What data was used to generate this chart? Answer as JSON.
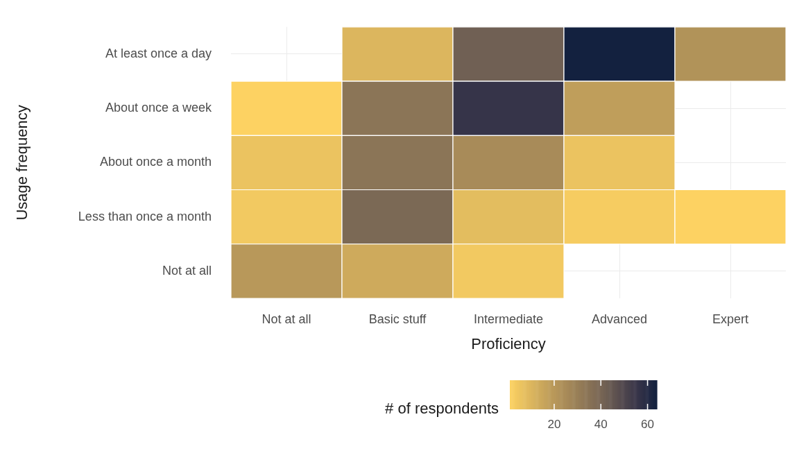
{
  "chart_data": {
    "type": "heatmap",
    "xlabel": "Proficiency",
    "ylabel": "Usage frequency",
    "legend_title": "# of respondents",
    "categories": [
      "Not at all",
      "Basic stuff",
      "Intermediate",
      "Advanced",
      "Expert"
    ],
    "y_categories": [
      "At least once a day",
      "About once a week",
      "About once a month",
      "Less than once a month",
      "Not at all"
    ],
    "cells": [
      [
        null,
        10,
        42,
        64,
        22
      ],
      [
        1,
        34,
        56,
        18,
        null
      ],
      [
        6,
        34,
        25,
        6,
        null
      ],
      [
        4,
        39,
        8,
        3,
        1
      ],
      [
        20,
        14,
        4,
        null,
        null
      ]
    ],
    "clim": [
      1,
      64
    ],
    "cticks": [
      20,
      40,
      60
    ],
    "grid": true
  }
}
